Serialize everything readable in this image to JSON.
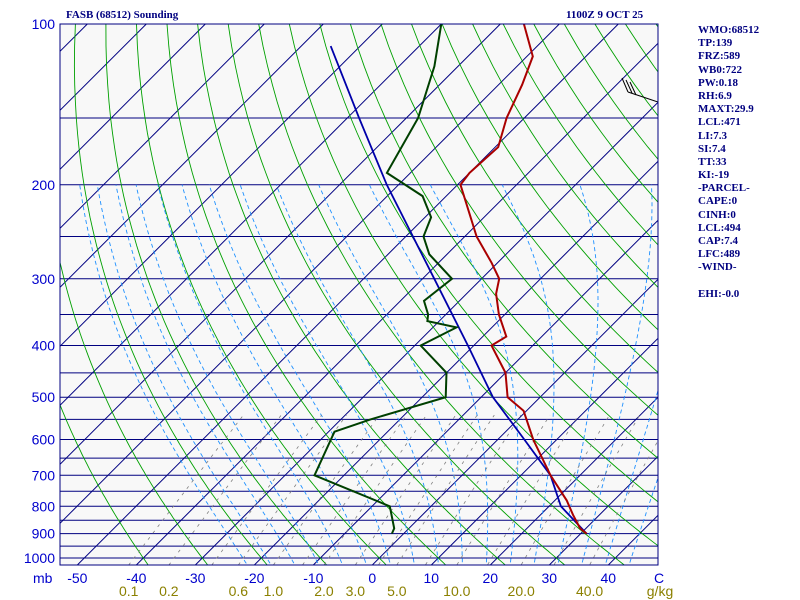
{
  "header": {
    "station": "FASB (68512) Sounding",
    "time": "1100Z  9 OCT 25"
  },
  "indices": [
    "WMO:68512",
    "TP:139",
    "FRZ:589",
    "WB0:722",
    "PW:0.18",
    "RH:6.9",
    "MAXT:29.9",
    "LCL:471",
    "LI:7.3",
    "SI:7.4",
    "TT:33",
    "KI:-19",
    "-PARCEL-",
    "CAPE:0",
    "CINH:0",
    "LCL:494",
    "CAP:7.4",
    "LFC:489",
    "-WIND-",
    "",
    "EHI:-0.0"
  ],
  "colors": {
    "background": "#f8f8f8",
    "isobar": "#000080",
    "isotherm": "#000080",
    "dry_adiabat": "#00a000",
    "moist_adiabat": "#1e90ff",
    "mixing_ratio": "#808080",
    "temperature": "#aa0000",
    "dewpoint": "#004000",
    "parcel": "#0000aa",
    "label_blue": "#0000cc",
    "label_olive": "#8b8000"
  },
  "chart_data": {
    "type": "skew-t log-p sounding",
    "title": "FASB (68512) Sounding",
    "x_unit": "C",
    "pressure_unit": "mb",
    "pressure_labels": [
      100,
      200,
      300,
      400,
      500,
      600,
      700,
      800,
      900,
      1000
    ],
    "temperature_labels": [
      -50,
      -40,
      -30,
      -20,
      -10,
      0,
      10,
      20,
      30,
      40
    ],
    "mixing_ratio_labels": [
      "0.1",
      "0.2",
      "0.6",
      "1.0",
      "2.0",
      "3.0",
      "5.0",
      "10.0",
      "20.0",
      "40.0"
    ],
    "mixing_ratio_values": [
      0.1,
      0.2,
      0.6,
      1.0,
      2.0,
      3.0,
      5.0,
      10.0,
      20.0,
      40.0
    ],
    "mixing_ratio_unit": "g/kg",
    "ylim": [
      1050,
      100
    ],
    "xlim_at_bottom": [
      -50,
      50
    ],
    "temperature": [
      {
        "p": 900,
        "t": 31
      },
      {
        "p": 880,
        "t": 29
      },
      {
        "p": 830,
        "t": 25.5
      },
      {
        "p": 780,
        "t": 22
      },
      {
        "p": 700,
        "t": 15
      },
      {
        "p": 600,
        "t": 6
      },
      {
        "p": 530,
        "t": -0.5
      },
      {
        "p": 500,
        "t": -5.5
      },
      {
        "p": 450,
        "t": -10
      },
      {
        "p": 400,
        "t": -17
      },
      {
        "p": 385,
        "t": -16
      },
      {
        "p": 350,
        "t": -21
      },
      {
        "p": 320,
        "t": -25
      },
      {
        "p": 300,
        "t": -27
      },
      {
        "p": 280,
        "t": -31
      },
      {
        "p": 250,
        "t": -38
      },
      {
        "p": 200,
        "t": -49.5
      },
      {
        "p": 190,
        "t": -50
      },
      {
        "p": 170,
        "t": -49.5
      },
      {
        "p": 150,
        "t": -53
      },
      {
        "p": 130,
        "t": -56
      },
      {
        "p": 115,
        "t": -59
      },
      {
        "p": 100,
        "t": -66
      }
    ],
    "dewpoint": [
      {
        "p": 900,
        "t": -2
      },
      {
        "p": 880,
        "t": -2.5
      },
      {
        "p": 800,
        "t": -7
      },
      {
        "p": 700,
        "t": -25
      },
      {
        "p": 580,
        "t": -29
      },
      {
        "p": 550,
        "t": -25
      },
      {
        "p": 500,
        "t": -16
      },
      {
        "p": 450,
        "t": -20
      },
      {
        "p": 400,
        "t": -29
      },
      {
        "p": 370,
        "t": -26
      },
      {
        "p": 360,
        "t": -32
      },
      {
        "p": 350,
        "t": -33
      },
      {
        "p": 330,
        "t": -36
      },
      {
        "p": 300,
        "t": -35
      },
      {
        "p": 270,
        "t": -43
      },
      {
        "p": 250,
        "t": -47
      },
      {
        "p": 230,
        "t": -49
      },
      {
        "p": 210,
        "t": -54
      },
      {
        "p": 190,
        "t": -64
      },
      {
        "p": 150,
        "t": -68
      },
      {
        "p": 120,
        "t": -74
      },
      {
        "p": 100,
        "t": -80
      }
    ],
    "parcel": [
      {
        "p": 900,
        "t": 31
      },
      {
        "p": 800,
        "t": 22
      },
      {
        "p": 700,
        "t": 15
      },
      {
        "p": 600,
        "t": 4.5
      },
      {
        "p": 500,
        "t": -8
      },
      {
        "p": 400,
        "t": -21
      },
      {
        "p": 300,
        "t": -38
      },
      {
        "p": 200,
        "t": -62
      },
      {
        "p": 150,
        "t": -78
      },
      {
        "p": 110,
        "t": -95
      }
    ]
  }
}
